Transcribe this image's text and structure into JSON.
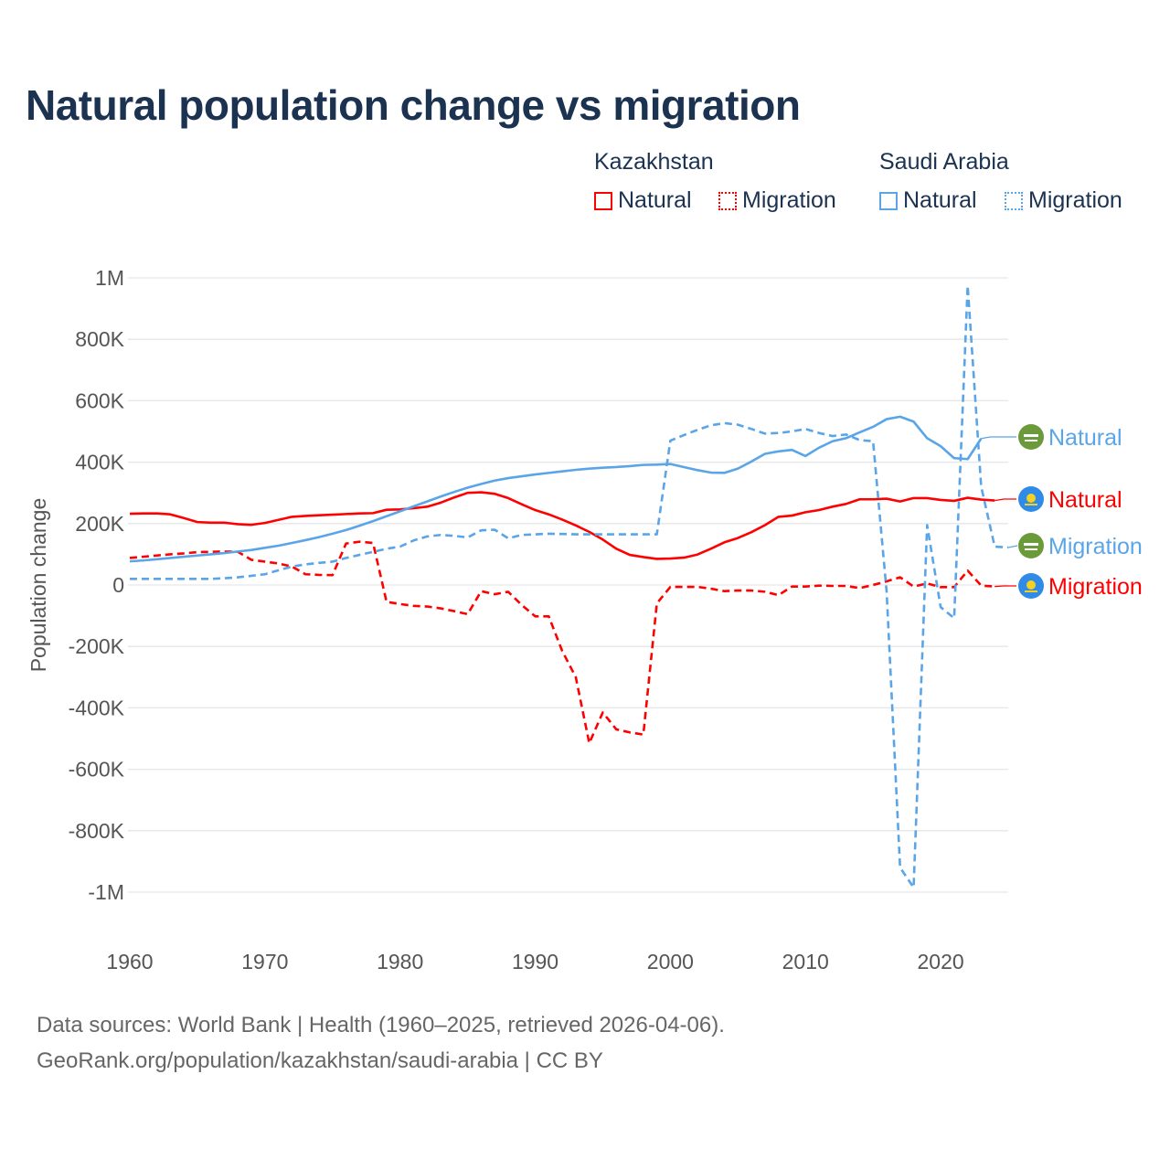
{
  "title": "Natural population change vs migration",
  "legend": {
    "groups": [
      {
        "name": "Kazakhstan",
        "color": "#ff0000",
        "items": [
          "Natural",
          "Migration"
        ]
      },
      {
        "name": "Saudi Arabia",
        "color": "#5aa5e8",
        "items": [
          "Natural",
          "Migration"
        ]
      }
    ]
  },
  "footer": {
    "line1": "Data sources: World Bank | Health (1960–2025, retrieved 2026-04-06).",
    "line2": "GeoRank.org/population/kazakhstan/saudi-arabia | CC BY"
  },
  "chart_data": {
    "type": "line",
    "title": "Natural population change vs migration",
    "xlabel": "",
    "ylabel": "Population change",
    "xlim": [
      1960,
      2025
    ],
    "ylim": [
      -1000000,
      1000000
    ],
    "x_ticks": [
      1960,
      1970,
      1980,
      1990,
      2000,
      2010,
      2020
    ],
    "y_ticks": [
      {
        "v": 1000000,
        "label": "1M"
      },
      {
        "v": 800000,
        "label": "800K"
      },
      {
        "v": 600000,
        "label": "600K"
      },
      {
        "v": 400000,
        "label": "400K"
      },
      {
        "v": 200000,
        "label": "200K"
      },
      {
        "v": 0,
        "label": "0"
      },
      {
        "v": -200000,
        "label": "-200K"
      },
      {
        "v": -400000,
        "label": "-400K"
      },
      {
        "v": -600000,
        "label": "-600K"
      },
      {
        "v": -800000,
        "label": "-800K"
      },
      {
        "v": -1000000,
        "label": "-1M"
      }
    ],
    "grid": true,
    "legend_position": "top-right",
    "x_start": 1960,
    "series": [
      {
        "name": "Kazakhstan Natural",
        "end_label": "Natural",
        "country": "Kazakhstan",
        "color": "#ff0000",
        "dashed": false,
        "units": "thousands",
        "values": [
          232,
          233,
          233,
          230,
          218,
          205,
          203,
          203,
          198,
          196,
          202,
          212,
          222,
          225,
          227,
          229,
          231,
          233,
          234,
          245,
          246,
          250,
          255,
          268,
          285,
          300,
          302,
          297,
          283,
          263,
          244,
          230,
          213,
          194,
          173,
          148,
          118,
          98,
          91,
          85,
          86,
          89,
          99,
          118,
          139,
          153,
          172,
          195,
          222,
          226,
          237,
          244,
          255,
          264,
          279,
          279,
          281,
          272,
          283,
          283,
          277,
          274,
          284,
          278,
          275
        ]
      },
      {
        "name": "Kazakhstan Migration",
        "end_label": "Migration",
        "country": "Kazakhstan",
        "color": "#ff0000",
        "dashed": true,
        "units": "thousands",
        "values": [
          88,
          92,
          96,
          100,
          103,
          107,
          108,
          109,
          108,
          82,
          76,
          70,
          60,
          35,
          33,
          32,
          135,
          141,
          137,
          -55,
          -62,
          -68,
          -70,
          -76,
          -85,
          -95,
          -20,
          -30,
          -22,
          -65,
          -102,
          -102,
          -215,
          -300,
          -515,
          -415,
          -470,
          -480,
          -487,
          -60,
          -6,
          -6,
          -6,
          -12,
          -20,
          -18,
          -18,
          -22,
          -33,
          -5,
          -5,
          -2,
          -3,
          -3,
          -10,
          0,
          12,
          25,
          -5,
          5,
          -7,
          -7,
          47,
          -2,
          -5
        ]
      },
      {
        "name": "Saudi Arabia Natural",
        "end_label": "Natural",
        "country": "Saudi Arabia",
        "color": "#5aa5e8",
        "dashed": false,
        "units": "thousands",
        "values": [
          77,
          80,
          84,
          88,
          92,
          96,
          100,
          104,
          109,
          114,
          121,
          128,
          137,
          146,
          156,
          167,
          179,
          193,
          208,
          224,
          240,
          256,
          272,
          288,
          303,
          317,
          329,
          340,
          348,
          354,
          360,
          365,
          370,
          375,
          379,
          382,
          384,
          387,
          391,
          392,
          394,
          384,
          374,
          366,
          365,
          379,
          402,
          427,
          435,
          440,
          420,
          447,
          468,
          478,
          497,
          515,
          540,
          548,
          532,
          478,
          452,
          413,
          410,
          477
        ]
      },
      {
        "name": "Saudi Arabia Migration",
        "end_label": "Migration",
        "country": "Saudi Arabia",
        "color": "#5aa5e8",
        "dashed": true,
        "units": "thousands",
        "values": [
          20,
          20,
          20,
          20,
          20,
          20,
          20,
          22,
          25,
          30,
          35,
          48,
          60,
          67,
          72,
          76,
          88,
          98,
          108,
          118,
          125,
          145,
          158,
          163,
          160,
          155,
          178,
          180,
          152,
          163,
          165,
          167,
          166,
          165,
          165,
          165,
          165,
          165,
          165,
          165,
          470,
          488,
          505,
          520,
          527,
          522,
          508,
          493,
          495,
          500,
          508,
          495,
          485,
          490,
          472,
          468,
          -20,
          -920,
          -985,
          195,
          -72,
          -108,
          975,
          320,
          125,
          122
        ]
      }
    ],
    "end_labels_order": [
      2,
      0,
      3,
      1
    ]
  }
}
